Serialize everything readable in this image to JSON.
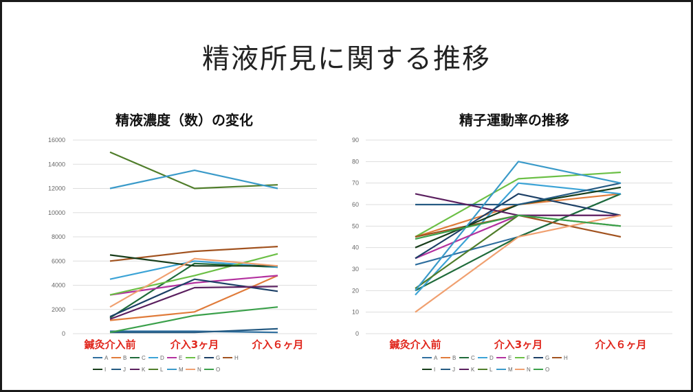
{
  "slide_title": "精液所見に関する推移",
  "chart_data": [
    {
      "type": "line",
      "title": "精液濃度（数）の変化",
      "categories": [
        "鍼灸介入前",
        "介入3ヶ月",
        "介入６ヶ月"
      ],
      "ylim": [
        0,
        16000
      ],
      "yticks": [
        0,
        2000,
        4000,
        6000,
        8000,
        10000,
        12000,
        14000,
        16000
      ],
      "grid": true,
      "legend": "bottom",
      "series": [
        {
          "name": "A",
          "color": "#2e6e9e",
          "values": [
            200,
            200,
            100
          ]
        },
        {
          "name": "B",
          "color": "#e07b3a",
          "values": [
            1100,
            1800,
            4800
          ]
        },
        {
          "name": "C",
          "color": "#1f6b3a",
          "values": [
            1300,
            5800,
            5500
          ]
        },
        {
          "name": "D",
          "color": "#3ba3d6",
          "values": [
            4500,
            6000,
            5500
          ]
        },
        {
          "name": "E",
          "color": "#b3319f",
          "values": [
            3200,
            4200,
            4800
          ]
        },
        {
          "name": "F",
          "color": "#6bbf45",
          "values": [
            3200,
            4800,
            6600
          ]
        },
        {
          "name": "G",
          "color": "#1c3f66",
          "values": [
            1400,
            4500,
            3500
          ]
        },
        {
          "name": "H",
          "color": "#a1521f",
          "values": [
            6000,
            6800,
            7200
          ]
        },
        {
          "name": "I",
          "color": "#173d1a",
          "values": [
            6500,
            5600,
            5600
          ]
        },
        {
          "name": "J",
          "color": "#255a82",
          "values": [
            100,
            100,
            400
          ]
        },
        {
          "name": "K",
          "color": "#5a1f5e",
          "values": [
            1200,
            3800,
            3900
          ]
        },
        {
          "name": "L",
          "color": "#4f7d2a",
          "values": [
            15000,
            12000,
            12300
          ]
        },
        {
          "name": "M",
          "color": "#3a9ac9",
          "values": [
            12000,
            13500,
            12000
          ]
        },
        {
          "name": "N",
          "color": "#f0a070",
          "values": [
            2200,
            6200,
            5600
          ]
        },
        {
          "name": "O",
          "color": "#3aa04a",
          "values": [
            100,
            1500,
            2200
          ]
        }
      ]
    },
    {
      "type": "line",
      "title": "精子運動率の推移",
      "categories": [
        "鍼灸介入前",
        "介入3ヶ月",
        "介入６ヶ月"
      ],
      "ylim": [
        0,
        90
      ],
      "yticks": [
        0,
        10,
        20,
        30,
        40,
        50,
        60,
        70,
        80,
        90
      ],
      "grid": true,
      "legend": "bottom",
      "series": [
        {
          "name": "A",
          "color": "#2e6e9e",
          "values": [
            32,
            45,
            65
          ]
        },
        {
          "name": "B",
          "color": "#e07b3a",
          "values": [
            45,
            60,
            65
          ]
        },
        {
          "name": "C",
          "color": "#1f6b3a",
          "values": [
            20,
            45,
            65
          ]
        },
        {
          "name": "D",
          "color": "#3ba3d6",
          "values": [
            18,
            70,
            65
          ]
        },
        {
          "name": "E",
          "color": "#b3319f",
          "values": [
            35,
            55,
            55
          ]
        },
        {
          "name": "F",
          "color": "#6bbf45",
          "values": [
            45,
            72,
            75
          ]
        },
        {
          "name": "G",
          "color": "#1c3f66",
          "values": [
            35,
            65,
            55
          ]
        },
        {
          "name": "H",
          "color": "#a1521f",
          "values": [
            45,
            55,
            45
          ]
        },
        {
          "name": "I",
          "color": "#173d1a",
          "values": [
            40,
            60,
            68
          ]
        },
        {
          "name": "J",
          "color": "#255a82",
          "values": [
            60,
            60,
            70
          ]
        },
        {
          "name": "K",
          "color": "#5a1f5e",
          "values": [
            65,
            55,
            55
          ]
        },
        {
          "name": "L",
          "color": "#4f7d2a",
          "values": [
            21,
            55,
            50
          ]
        },
        {
          "name": "M",
          "color": "#3a9ac9",
          "values": [
            20,
            80,
            70
          ]
        },
        {
          "name": "N",
          "color": "#f0a070",
          "values": [
            10,
            45,
            55
          ]
        },
        {
          "name": "O",
          "color": "#3aa04a",
          "values": [
            44,
            55,
            50
          ]
        }
      ]
    }
  ]
}
